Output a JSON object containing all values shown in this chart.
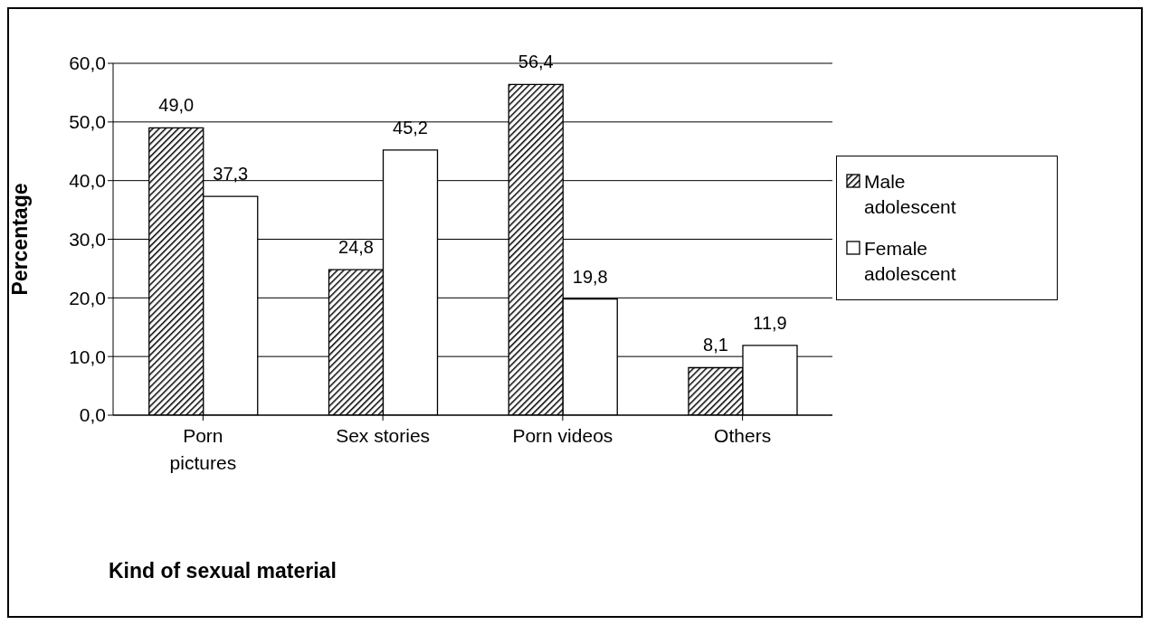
{
  "chart_data": {
    "type": "bar",
    "xlabel": "Kind of sexual material",
    "ylabel": "Percentage",
    "categories": [
      "Porn pictures",
      "Sex stories",
      "Porn videos",
      "Others"
    ],
    "series": [
      {
        "name": "Male adolescent",
        "color": "#000000",
        "values": [
          49.0,
          24.8,
          56.4,
          8.1
        ],
        "value_labels": [
          "49,0",
          "24,8",
          "56,4",
          "8,1"
        ]
      },
      {
        "name": "Female adolescent",
        "color": "#ffffff",
        "values": [
          37.3,
          45.2,
          19.8,
          11.9
        ],
        "value_labels": [
          "37,3",
          "45,2",
          "19,8",
          "11,9"
        ]
      }
    ],
    "ylim": [
      0,
      60
    ],
    "yticks": [
      {
        "value": 0,
        "label": "0,0"
      },
      {
        "value": 10,
        "label": "10,0"
      },
      {
        "value": 20,
        "label": "20,0"
      },
      {
        "value": 30,
        "label": "30,0"
      },
      {
        "value": 40,
        "label": "40,0"
      },
      {
        "value": 50,
        "label": "50,0"
      },
      {
        "value": 60,
        "label": "60,0"
      }
    ],
    "grid": "y",
    "legend": "right"
  }
}
